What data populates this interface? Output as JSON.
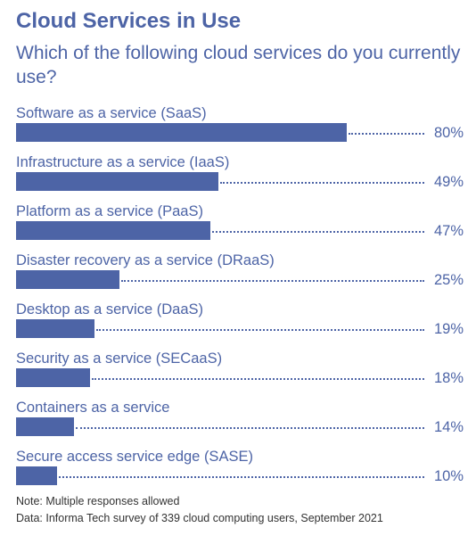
{
  "chart_data": {
    "type": "bar",
    "orientation": "horizontal",
    "title": "Cloud Services in Use",
    "subtitle": "Which of the following cloud services do you currently use?",
    "categories": [
      "Software as a service (SaaS)",
      "Infrastructure as a service (IaaS)",
      "Platform as a service (PaaS)",
      "Disaster recovery as a service (DRaaS)",
      "Desktop as a service (DaaS)",
      "Security as a service (SECaaS)",
      "Containers as a service",
      "Secure access service edge (SASE)"
    ],
    "values": [
      80,
      49,
      47,
      25,
      19,
      18,
      14,
      10
    ],
    "value_labels": [
      "80%",
      "49%",
      "47%",
      "25%",
      "19%",
      "18%",
      "14%",
      "10%"
    ],
    "unit": "%",
    "xlim": [
      0,
      100
    ],
    "grid": false,
    "legend": "none",
    "notes": [
      "Note: Multiple responses allowed",
      "Data: Informa Tech survey of 339 cloud computing users, September 2021"
    ]
  },
  "colors": {
    "bar": "#4d64a6",
    "text": "#4d64a6",
    "note": "#333333"
  }
}
